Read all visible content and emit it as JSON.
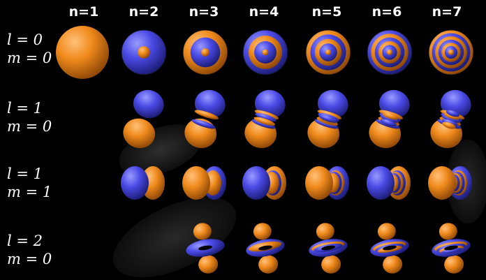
{
  "colors": {
    "background": "#000000",
    "positive_lobe": "#f08a1c",
    "negative_lobe": "#4a4ae6",
    "text": "#ffffff"
  },
  "columns": [
    "n=1",
    "n=2",
    "n=3",
    "n=4",
    "n=5",
    "n=6",
    "n=7"
  ],
  "rows": [
    {
      "l_label": "l = 0",
      "m_label": "m = 0",
      "l": 0,
      "m": 0,
      "start_n": 1
    },
    {
      "l_label": "l = 1",
      "m_label": "m = 0",
      "l": 1,
      "m": 0,
      "start_n": 2
    },
    {
      "l_label": "l = 1",
      "m_label": "m = 1",
      "l": 1,
      "m": 1,
      "start_n": 2
    },
    {
      "l_label": "l = 2",
      "m_label": "m = 0",
      "l": 2,
      "m": 0,
      "start_n": 3
    }
  ]
}
